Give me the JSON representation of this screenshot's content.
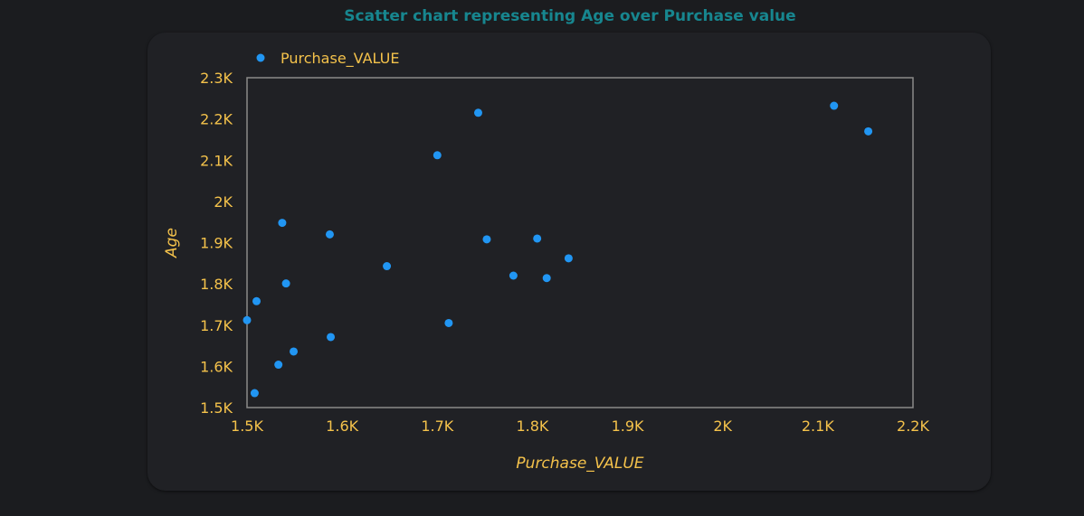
{
  "chart_data": {
    "type": "scatter",
    "title": "Scatter chart representing Age over Purchase value",
    "xlabel": "Purchase_VALUE",
    "ylabel": "Age",
    "xlim": [
      1500,
      2200
    ],
    "ylim": [
      1500,
      2300
    ],
    "x_ticks": [
      1500,
      1600,
      1700,
      1800,
      1900,
      2000,
      2100,
      2200
    ],
    "x_tick_labels": [
      "1.5K",
      "1.6K",
      "1.7K",
      "1.8K",
      "1.9K",
      "2K",
      "2.1K",
      "2.2K"
    ],
    "y_ticks": [
      1500,
      1600,
      1700,
      1800,
      1900,
      2000,
      2100,
      2200,
      2300
    ],
    "y_tick_labels": [
      "1.5K",
      "1.6K",
      "1.7K",
      "1.8K",
      "1.9K",
      "2K",
      "2.1K",
      "2.2K",
      "2.3K"
    ],
    "grid": false,
    "legend_position": "top-left",
    "series": [
      {
        "name": "Purchase_VALUE",
        "color": "#2196f3",
        "points": [
          {
            "x": 1500,
            "y": 1712
          },
          {
            "x": 1508,
            "y": 1535
          },
          {
            "x": 1510,
            "y": 1758
          },
          {
            "x": 1533,
            "y": 1604
          },
          {
            "x": 1537,
            "y": 1948
          },
          {
            "x": 1541,
            "y": 1801
          },
          {
            "x": 1549,
            "y": 1636
          },
          {
            "x": 1587,
            "y": 1920
          },
          {
            "x": 1588,
            "y": 1671
          },
          {
            "x": 1647,
            "y": 1843
          },
          {
            "x": 1700,
            "y": 2112
          },
          {
            "x": 1712,
            "y": 1705
          },
          {
            "x": 1743,
            "y": 2215
          },
          {
            "x": 1752,
            "y": 1908
          },
          {
            "x": 1780,
            "y": 1820
          },
          {
            "x": 1805,
            "y": 1910
          },
          {
            "x": 1815,
            "y": 1814
          },
          {
            "x": 1838,
            "y": 1862
          },
          {
            "x": 2117,
            "y": 2232
          },
          {
            "x": 2153,
            "y": 2170
          }
        ]
      }
    ]
  }
}
